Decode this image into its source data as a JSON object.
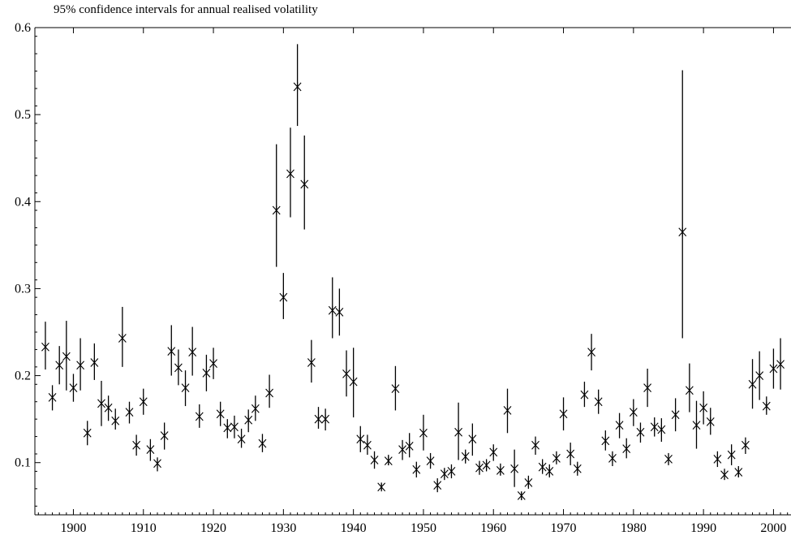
{
  "chart_data": {
    "type": "scatter",
    "title": "95% confidence intervals for annual realised volatility",
    "xlabel": "",
    "ylabel": "",
    "xlim": [
      1894.5,
      2002.5
    ],
    "ylim": [
      0.04,
      0.6
    ],
    "xticks": [
      1900,
      1910,
      1920,
      1930,
      1940,
      1950,
      1960,
      1970,
      1980,
      1990,
      2000
    ],
    "yticks": [
      0.1,
      0.2,
      0.3,
      0.4,
      0.5,
      0.6
    ],
    "ytick_labels": [
      "0.1",
      "0.2",
      "0.3",
      "0.4",
      "0.5",
      "0.6"
    ],
    "grid": false,
    "marker": "asterisk",
    "color": "#000000",
    "series": [
      {
        "x": [
          1896,
          1897,
          1898,
          1899,
          1900,
          1901,
          1902,
          1903,
          1904,
          1905,
          1906,
          1907,
          1908,
          1909,
          1910,
          1911,
          1912,
          1913,
          1914,
          1915,
          1916,
          1917,
          1918,
          1919,
          1920,
          1921,
          1922,
          1923,
          1924,
          1925,
          1926,
          1927,
          1928,
          1929,
          1930,
          1931,
          1932,
          1933,
          1934,
          1935,
          1936,
          1937,
          1938,
          1939,
          1940,
          1941,
          1942,
          1943,
          1944,
          1945,
          1946,
          1947,
          1948,
          1949,
          1950,
          1951,
          1952,
          1953,
          1954,
          1955,
          1956,
          1957,
          1958,
          1959,
          1960,
          1961,
          1962,
          1963,
          1964,
          1965,
          1966,
          1967,
          1968,
          1969,
          1970,
          1971,
          1972,
          1973,
          1974,
          1975,
          1976,
          1977,
          1978,
          1979,
          1980,
          1981,
          1982,
          1983,
          1984,
          1985,
          1986,
          1987,
          1988,
          1989,
          1990,
          1991,
          1992,
          1993,
          1994,
          1995,
          1996,
          1997,
          1998,
          1999,
          2000,
          2001
        ],
        "y": [
          0.233,
          0.175,
          0.212,
          0.222,
          0.186,
          0.212,
          0.134,
          0.215,
          0.168,
          0.163,
          0.148,
          0.243,
          0.158,
          0.12,
          0.17,
          0.115,
          0.099,
          0.131,
          0.228,
          0.209,
          0.186,
          0.227,
          0.153,
          0.203,
          0.214,
          0.156,
          0.14,
          0.141,
          0.127,
          0.149,
          0.162,
          0.122,
          0.18,
          0.39,
          0.29,
          0.432,
          0.532,
          0.42,
          0.215,
          0.15,
          0.15,
          0.275,
          0.273,
          0.202,
          0.193,
          0.127,
          0.12,
          0.103,
          0.072,
          0.102,
          0.185,
          0.115,
          0.119,
          0.092,
          0.134,
          0.102,
          0.074,
          0.087,
          0.09,
          0.135,
          0.107,
          0.127,
          0.094,
          0.097,
          0.112,
          0.091,
          0.16,
          0.093,
          0.062,
          0.077,
          0.12,
          0.095,
          0.09,
          0.105,
          0.156,
          0.11,
          0.093,
          0.178,
          0.227,
          0.17,
          0.125,
          0.105,
          0.143,
          0.116,
          0.158,
          0.135,
          0.186,
          0.141,
          0.138,
          0.104,
          0.155,
          0.365,
          0.183,
          0.143,
          0.163,
          0.147,
          0.104,
          0.086,
          0.109,
          0.089,
          0.12,
          0.19,
          0.2,
          0.165,
          0.208,
          0.213
        ],
        "lower": [
          0.207,
          0.16,
          0.19,
          0.183,
          0.17,
          0.183,
          0.12,
          0.195,
          0.142,
          0.148,
          0.138,
          0.21,
          0.145,
          0.108,
          0.155,
          0.102,
          0.09,
          0.115,
          0.2,
          0.189,
          0.165,
          0.2,
          0.14,
          0.182,
          0.196,
          0.142,
          0.128,
          0.128,
          0.117,
          0.135,
          0.148,
          0.112,
          0.163,
          0.325,
          0.265,
          0.382,
          0.487,
          0.368,
          0.192,
          0.139,
          0.137,
          0.243,
          0.246,
          0.176,
          0.152,
          0.112,
          0.109,
          0.093,
          0.068,
          0.097,
          0.16,
          0.103,
          0.106,
          0.083,
          0.114,
          0.093,
          0.066,
          0.08,
          0.082,
          0.103,
          0.099,
          0.108,
          0.086,
          0.09,
          0.102,
          0.085,
          0.134,
          0.072,
          0.057,
          0.07,
          0.109,
          0.087,
          0.083,
          0.098,
          0.137,
          0.097,
          0.085,
          0.164,
          0.206,
          0.156,
          0.114,
          0.096,
          0.128,
          0.105,
          0.142,
          0.123,
          0.164,
          0.13,
          0.124,
          0.097,
          0.136,
          0.243,
          0.158,
          0.116,
          0.144,
          0.132,
          0.095,
          0.08,
          0.097,
          0.083,
          0.11,
          0.162,
          0.172,
          0.155,
          0.185,
          0.184
        ],
        "upper": [
          0.262,
          0.189,
          0.234,
          0.263,
          0.202,
          0.243,
          0.148,
          0.237,
          0.194,
          0.177,
          0.162,
          0.279,
          0.17,
          0.132,
          0.185,
          0.127,
          0.106,
          0.146,
          0.258,
          0.23,
          0.206,
          0.256,
          0.167,
          0.224,
          0.232,
          0.17,
          0.15,
          0.154,
          0.139,
          0.161,
          0.177,
          0.133,
          0.201,
          0.466,
          0.318,
          0.485,
          0.581,
          0.476,
          0.241,
          0.164,
          0.162,
          0.313,
          0.3,
          0.229,
          0.232,
          0.142,
          0.132,
          0.113,
          0.076,
          0.109,
          0.211,
          0.126,
          0.134,
          0.101,
          0.155,
          0.111,
          0.082,
          0.094,
          0.098,
          0.169,
          0.115,
          0.145,
          0.102,
          0.104,
          0.121,
          0.099,
          0.185,
          0.115,
          0.066,
          0.085,
          0.13,
          0.104,
          0.098,
          0.113,
          0.175,
          0.123,
          0.101,
          0.193,
          0.248,
          0.184,
          0.137,
          0.113,
          0.157,
          0.128,
          0.173,
          0.146,
          0.208,
          0.152,
          0.151,
          0.111,
          0.174,
          0.551,
          0.214,
          0.171,
          0.182,
          0.163,
          0.113,
          0.093,
          0.121,
          0.096,
          0.129,
          0.219,
          0.228,
          0.176,
          0.231,
          0.243
        ]
      }
    ]
  }
}
